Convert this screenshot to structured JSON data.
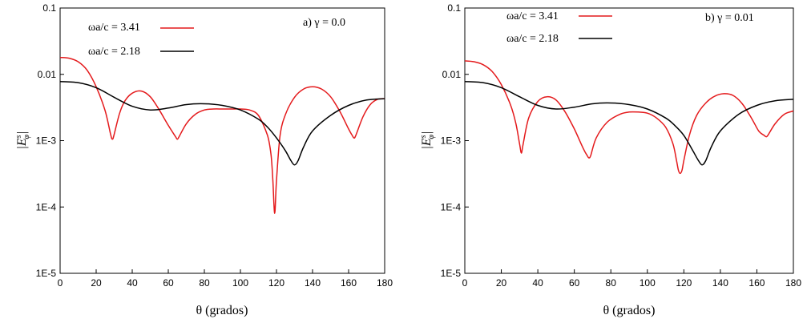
{
  "chart_data": [
    {
      "type": "line",
      "annotation": "a) γ = 0.0",
      "xlabel": "θ (grados)",
      "ylabel": "|Eφs|",
      "xlim": [
        0,
        180
      ],
      "ylim": [
        1e-05,
        0.1
      ],
      "yscale": "log",
      "x_ticks": [
        0,
        20,
        40,
        60,
        80,
        100,
        120,
        140,
        160,
        180
      ],
      "y_ticks": [
        "1E-5",
        "1E-4",
        "1E-3",
        "0.01",
        "0.1"
      ],
      "grid": false,
      "legend_position": "top-left",
      "series": [
        {
          "name": "ωa/c = 3.41",
          "color": "#e41a1c",
          "x": [
            0,
            5,
            10,
            15,
            20,
            25,
            28,
            29,
            30,
            33,
            36,
            40,
            45,
            50,
            55,
            60,
            64,
            65,
            66,
            70,
            75,
            80,
            85,
            90,
            95,
            100,
            105,
            110,
            115,
            117,
            118,
            119,
            120,
            122,
            125,
            130,
            135,
            140,
            145,
            150,
            155,
            160,
            162,
            163,
            164,
            168,
            172,
            176,
            180
          ],
          "y": [
            0.018,
            0.0175,
            0.0155,
            0.0115,
            0.0065,
            0.0028,
            0.00125,
            0.00105,
            0.00125,
            0.0026,
            0.004,
            0.0052,
            0.0056,
            0.0046,
            0.0029,
            0.0017,
            0.00115,
            0.00105,
            0.00115,
            0.0018,
            0.0025,
            0.0029,
            0.003,
            0.003,
            0.003,
            0.003,
            0.0029,
            0.0024,
            0.0012,
            0.0006,
            0.00025,
            8e-05,
            0.00025,
            0.0012,
            0.0025,
            0.0045,
            0.006,
            0.0065,
            0.006,
            0.0046,
            0.0028,
            0.0015,
            0.0012,
            0.0011,
            0.0012,
            0.0023,
            0.0035,
            0.0042,
            0.0043
          ]
        },
        {
          "name": "ωa/c = 2.18",
          "color": "#000000",
          "x": [
            0,
            10,
            20,
            30,
            40,
            50,
            60,
            70,
            80,
            90,
            100,
            110,
            115,
            120,
            125,
            128,
            130,
            132,
            135,
            140,
            150,
            160,
            170,
            180
          ],
          "y": [
            0.0078,
            0.0075,
            0.0063,
            0.0045,
            0.0033,
            0.0029,
            0.0031,
            0.0035,
            0.0036,
            0.0034,
            0.0029,
            0.0021,
            0.0016,
            0.0011,
            0.0007,
            0.0005,
            0.00043,
            0.0005,
            0.0008,
            0.0014,
            0.0024,
            0.0034,
            0.0041,
            0.0043
          ]
        }
      ]
    },
    {
      "type": "line",
      "annotation": "b) γ = 0.01",
      "xlabel": "θ (grados)",
      "ylabel": "|Eφs|",
      "xlim": [
        0,
        180
      ],
      "ylim": [
        1e-05,
        0.1
      ],
      "yscale": "log",
      "x_ticks": [
        0,
        20,
        40,
        60,
        80,
        100,
        120,
        140,
        160,
        180
      ],
      "y_ticks": [
        "1E-5",
        "1E-4",
        "1E-3",
        "0.01",
        "0.1"
      ],
      "grid": false,
      "legend_position": "top-left",
      "series": [
        {
          "name": "ωa/c = 3.41",
          "color": "#e41a1c",
          "x": [
            0,
            5,
            10,
            15,
            20,
            25,
            28,
            30,
            31,
            32,
            35,
            40,
            45,
            50,
            55,
            60,
            65,
            67,
            68,
            69,
            72,
            78,
            85,
            90,
            95,
            100,
            105,
            110,
            114,
            116,
            117,
            118,
            119,
            120,
            123,
            127,
            132,
            137,
            142,
            147,
            152,
            157,
            161,
            164,
            165,
            166,
            170,
            175,
            180
          ],
          "y": [
            0.016,
            0.0155,
            0.014,
            0.011,
            0.007,
            0.0035,
            0.0018,
            0.0009,
            0.00065,
            0.0009,
            0.0022,
            0.0039,
            0.0046,
            0.0041,
            0.0027,
            0.0015,
            0.00075,
            0.0006,
            0.00055,
            0.0006,
            0.0011,
            0.0019,
            0.0025,
            0.0027,
            0.0027,
            0.0026,
            0.0022,
            0.0016,
            0.0009,
            0.0005,
            0.00036,
            0.00032,
            0.00036,
            0.0005,
            0.0012,
            0.0024,
            0.0037,
            0.0047,
            0.0051,
            0.0048,
            0.0036,
            0.0022,
            0.0014,
            0.0012,
            0.00115,
            0.0012,
            0.0018,
            0.0025,
            0.0028
          ]
        },
        {
          "name": "ωa/c = 2.18",
          "color": "#000000",
          "x": [
            0,
            10,
            20,
            30,
            40,
            50,
            60,
            70,
            80,
            90,
            100,
            110,
            115,
            120,
            125,
            128,
            130,
            132,
            135,
            140,
            150,
            160,
            170,
            180
          ],
          "y": [
            0.0078,
            0.0075,
            0.0063,
            0.0046,
            0.0034,
            0.003,
            0.0032,
            0.0036,
            0.0037,
            0.0035,
            0.003,
            0.0022,
            0.0017,
            0.0012,
            0.0007,
            0.0005,
            0.00043,
            0.0005,
            0.0008,
            0.0014,
            0.0025,
            0.0034,
            0.004,
            0.0042
          ]
        }
      ]
    }
  ]
}
